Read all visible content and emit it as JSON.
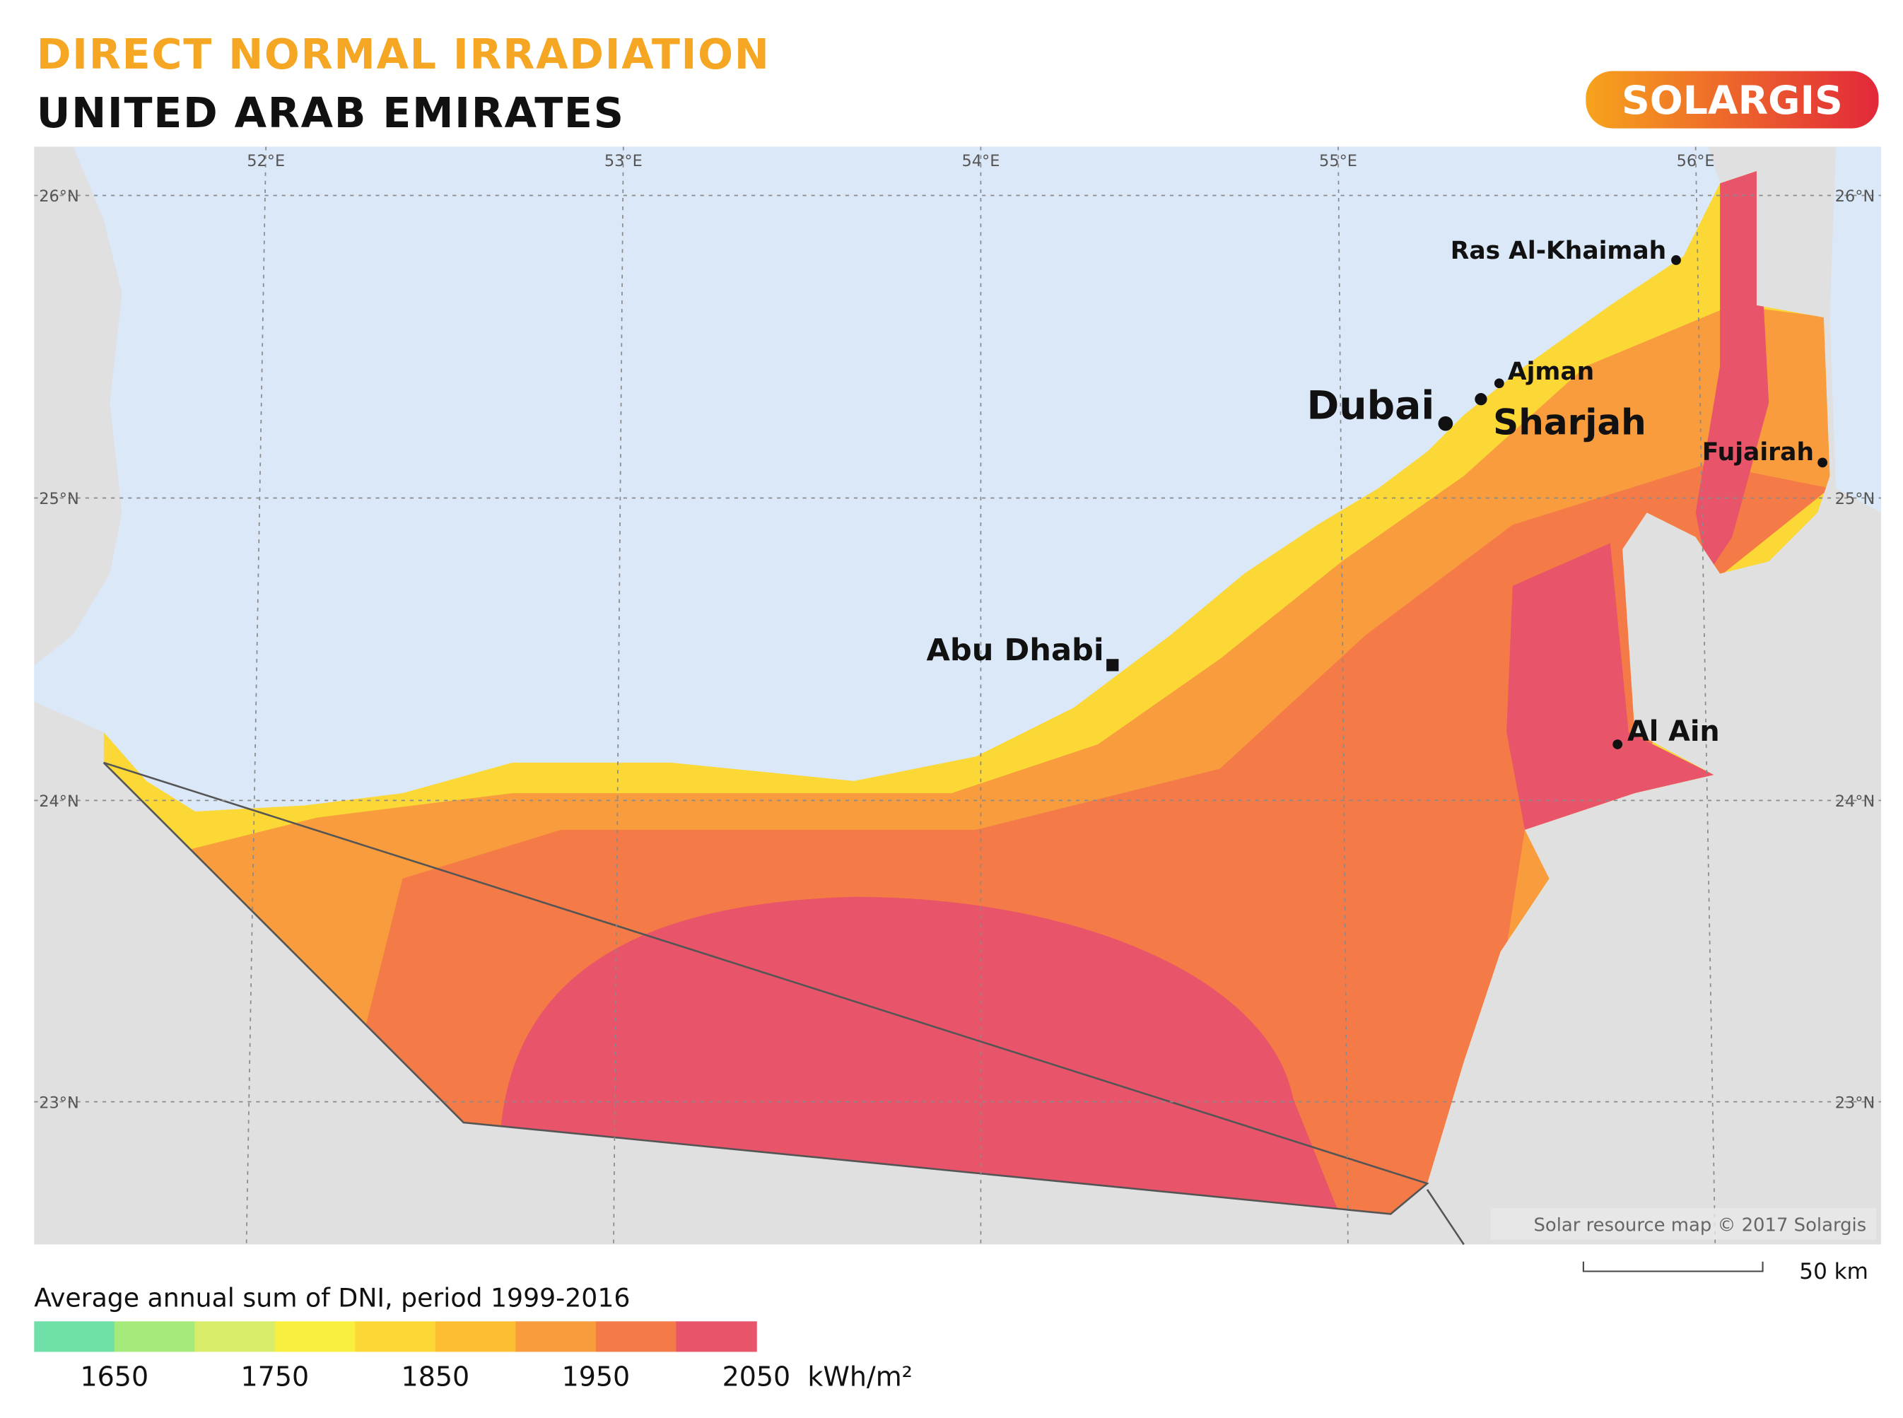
{
  "header": {
    "title": "DIRECT NORMAL IRRADIATION",
    "subtitle": "UNITED ARAB EMIRATES",
    "logo": "SOLARGIS"
  },
  "map": {
    "lon_labels": [
      "52°E",
      "53°E",
      "54°E",
      "55°E",
      "56°E"
    ],
    "lat_labels": [
      "26°N",
      "25°N",
      "24°N",
      "23°N"
    ],
    "cities": [
      "Ras Al-Khaimah",
      "Ajman",
      "Dubai",
      "Sharjah",
      "Fujairah",
      "Abu Dhabi",
      "Al Ain"
    ],
    "attribution": "Solar resource map © 2017 Solargis",
    "scale_label": "50 km"
  },
  "legend": {
    "title": "Average annual sum of DNI, period 1999-2016",
    "colors": [
      "#6fe0a8",
      "#a5ea7a",
      "#d9ec6a",
      "#f9ef3f",
      "#fbd836",
      "#fcbf33",
      "#f89c3e",
      "#f47b47",
      "#e8546a"
    ],
    "ticks": [
      1650,
      1750,
      1850,
      1950,
      2050
    ],
    "unit": "kWh/m²"
  }
}
